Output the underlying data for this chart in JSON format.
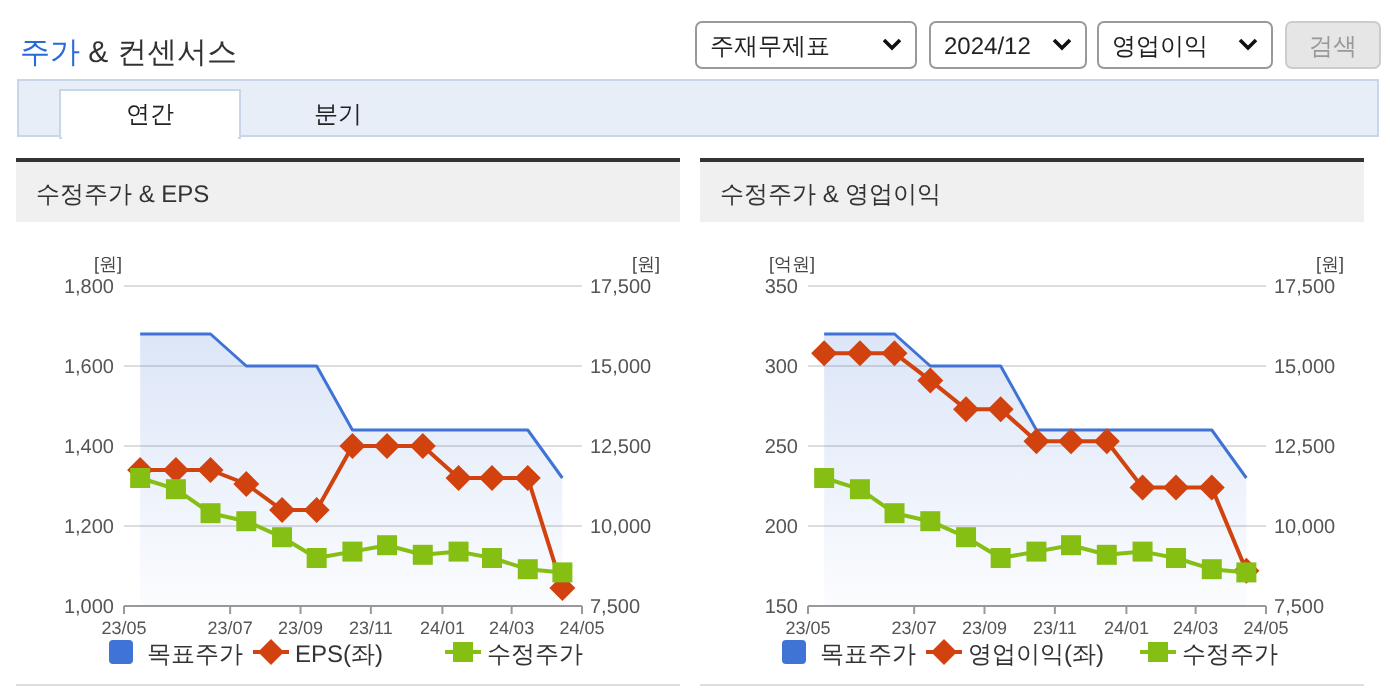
{
  "chart_data": [
    {
      "type": "other",
      "title": "주가 & 컨센서스",
      "annotations": [
        "주재무제표",
        "2024/12",
        "영업이익",
        "검색",
        "연간",
        "분기"
      ]
    },
    {
      "type": "line",
      "title": "수정주가 & EPS",
      "ylabel": "[원]",
      "y2label": "[원]",
      "x": [
        "2023-05-15",
        "2023-06-15",
        "2023-07-15",
        "2023-08-15",
        "2023-09-15",
        "2023-10-15",
        "2023-11-15",
        "2023-12-15",
        "2024-01-15",
        "2024-02-15",
        "2024-03-15",
        "2024-04-15",
        "2024-05-15"
      ],
      "xlim": [
        "2023-05-01",
        "2024-06-01"
      ],
      "xticks": [
        {
          "value": "2023-05-01",
          "label": "23/05"
        },
        {
          "value": "2023-08-01",
          "label": "23/07"
        },
        {
          "value": "2023-10-01",
          "label": "23/09"
        },
        {
          "value": "2023-12-01",
          "label": "23/11"
        },
        {
          "value": "2024-02-01",
          "label": "24/01"
        },
        {
          "value": "2024-04-01",
          "label": "24/03"
        },
        {
          "value": "2024-06-01",
          "label": "24/05"
        }
      ],
      "ylim": [
        1000,
        1800
      ],
      "yticks": [
        {
          "value": 1000,
          "label": "1,000"
        },
        {
          "value": 1200,
          "label": "1,200"
        },
        {
          "value": 1400,
          "label": "1,400"
        },
        {
          "value": 1600,
          "label": "1,600"
        },
        {
          "value": 1800,
          "label": "1,800"
        }
      ],
      "y2lim": [
        7500,
        17500
      ],
      "y2ticks": [
        {
          "value": 7500,
          "label": "7,500"
        },
        {
          "value": 10000,
          "label": "10,000"
        },
        {
          "value": 12500,
          "label": "12,500"
        },
        {
          "value": 15000,
          "label": "15,000"
        },
        {
          "value": 17500,
          "label": "17,500"
        }
      ],
      "grid": "y",
      "legend": "bottom",
      "series": [
        {
          "name": "목표주가",
          "type": "area",
          "axis": "y2",
          "color": "#3f74d6",
          "values": [
            16000,
            16000,
            16000,
            15000,
            15000,
            15000,
            13000,
            13000,
            13000,
            13000,
            13000,
            13000,
            11500
          ]
        },
        {
          "name": "EPS(좌)",
          "type": "line",
          "marker": "diamond",
          "color": "#d2420f",
          "values": [
            1340,
            1340,
            1340,
            1305,
            1240,
            1240,
            1400,
            1400,
            1400,
            1320,
            1320,
            1320,
            1045
          ]
        },
        {
          "name": "수정주가",
          "type": "line",
          "axis": "y2",
          "marker": "square",
          "color": "#86bf14",
          "values": [
            11500,
            11150,
            10400,
            10150,
            9650,
            9000,
            9200,
            9400,
            9100,
            9200,
            9000,
            8650,
            8550
          ]
        }
      ]
    },
    {
      "type": "line",
      "title": "수정주가 & 영업이익",
      "ylabel": "[억원]",
      "y2label": "[원]",
      "x": [
        "2023-05-15",
        "2023-06-15",
        "2023-07-15",
        "2023-08-15",
        "2023-09-15",
        "2023-10-15",
        "2023-11-15",
        "2023-12-15",
        "2024-01-15",
        "2024-02-15",
        "2024-03-15",
        "2024-04-15",
        "2024-05-15"
      ],
      "xlim": [
        "2023-05-01",
        "2024-06-01"
      ],
      "xticks": [
        {
          "value": "2023-05-01",
          "label": "23/05"
        },
        {
          "value": "2023-08-01",
          "label": "23/07"
        },
        {
          "value": "2023-10-01",
          "label": "23/09"
        },
        {
          "value": "2023-12-01",
          "label": "23/11"
        },
        {
          "value": "2024-02-01",
          "label": "24/01"
        },
        {
          "value": "2024-04-01",
          "label": "24/03"
        },
        {
          "value": "2024-06-01",
          "label": "24/05"
        }
      ],
      "ylim": [
        150,
        350
      ],
      "yticks": [
        150,
        200,
        250,
        300,
        350
      ],
      "y2lim": [
        7500,
        17500
      ],
      "y2ticks": [
        {
          "value": 7500,
          "label": "7,500"
        },
        {
          "value": 10000,
          "label": "10,000"
        },
        {
          "value": 12500,
          "label": "12,500"
        },
        {
          "value": 15000,
          "label": "15,000"
        },
        {
          "value": 17500,
          "label": "17,500"
        }
      ],
      "grid": "y",
      "legend": "bottom",
      "series": [
        {
          "name": "목표주가",
          "type": "area",
          "axis": "y2",
          "color": "#3f74d6",
          "values": [
            16000,
            16000,
            16000,
            15000,
            15000,
            15000,
            13000,
            13000,
            13000,
            13000,
            13000,
            13000,
            11500
          ]
        },
        {
          "name": "영업이익(좌)",
          "type": "line",
          "marker": "diamond",
          "color": "#d2420f",
          "values": [
            308,
            308,
            308,
            291,
            273,
            273,
            253,
            253,
            253,
            224,
            224,
            224,
            172
          ]
        },
        {
          "name": "수정주가",
          "type": "line",
          "axis": "y2",
          "marker": "square",
          "color": "#86bf14",
          "values": [
            11500,
            11150,
            10400,
            10150,
            9650,
            9000,
            9200,
            9400,
            9100,
            9200,
            9000,
            8650,
            8550
          ]
        }
      ]
    }
  ]
}
